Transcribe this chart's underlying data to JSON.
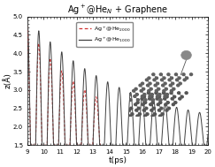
{
  "title": "Ag$^+$@He$_N$ + Graphene",
  "xlabel": "t(ps)",
  "ylabel": "z(Å)",
  "xlim": [
    9,
    20
  ],
  "ylim": [
    1.5,
    5.0
  ],
  "xticks": [
    9,
    10,
    11,
    12,
    13,
    14,
    15,
    16,
    17,
    18,
    19,
    20
  ],
  "yticks": [
    1.5,
    2,
    2.5,
    3,
    3.5,
    4,
    4.5,
    5
  ],
  "legend_he2000": "Ag$^+$@He$_{2000}$",
  "legend_he1000": "Ag$^+$@He$_{1000}$",
  "color_he2000": "#d03030",
  "color_he1000": "#404040",
  "bg_color": "#ffffff"
}
